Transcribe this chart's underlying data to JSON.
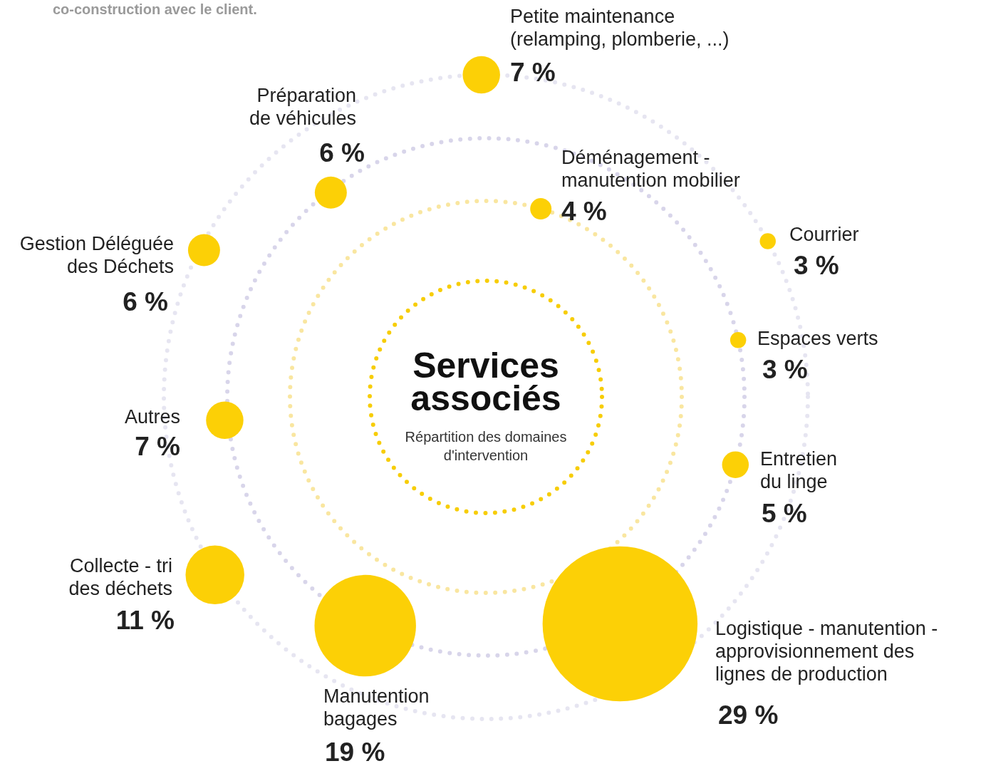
{
  "chart_data": {
    "type": "other",
    "title": "Services associés",
    "subtitle": "Répartition des domaines d'intervention",
    "annotations": [
      "co-construction avec le client."
    ],
    "categories": [
      "Petite maintenance (relamping, plomberie, ...)",
      "Déménagement - manutention mobilier",
      "Courrier",
      "Espaces verts",
      "Entretien du linge",
      "Logistique - manutention - approvisionnement des lignes de production",
      "Manutention bagages",
      "Collecte - tri des déchets",
      "Autres",
      "Gestion Déléguée des Déchets",
      "Préparation de véhicules"
    ],
    "values": [
      7,
      4,
      3,
      3,
      5,
      29,
      19,
      11,
      7,
      6,
      6
    ],
    "value_labels": [
      "7 %",
      "4 %",
      "3 %",
      "3 %",
      "5 %",
      "29 %",
      "19 %",
      "11 %",
      "7 %",
      "6 %",
      "6 %"
    ],
    "color": "#fcd006"
  }
}
